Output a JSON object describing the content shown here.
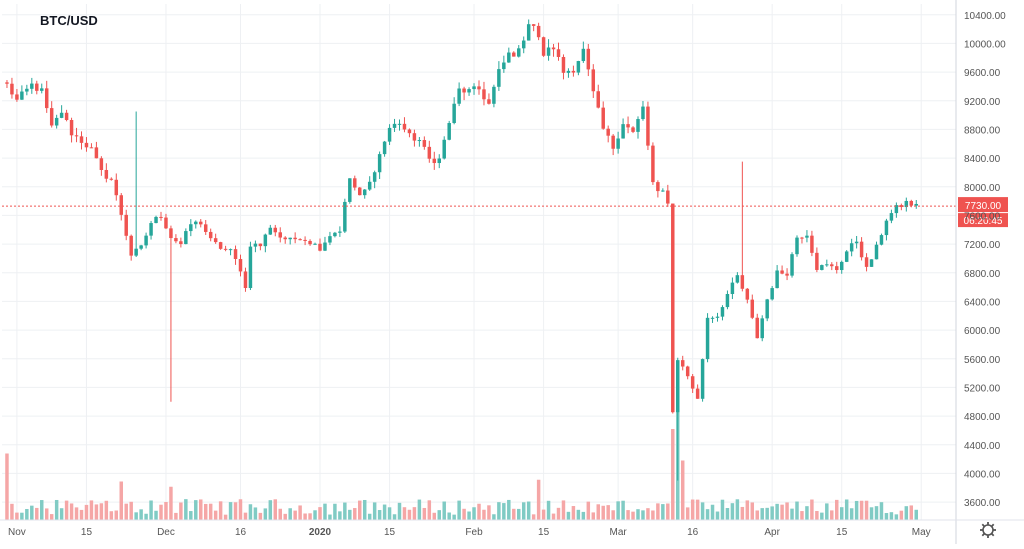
{
  "chart_data": {
    "type": "candlestick",
    "title": "BTC/USD",
    "y_ticks": [
      3600,
      4000,
      4400,
      4800,
      5200,
      5600,
      6000,
      6400,
      6800,
      7200,
      7600,
      8000,
      8400,
      8800,
      9200,
      9600,
      10000,
      10400
    ],
    "y_tick_labels": [
      "3600.00",
      "4000.00",
      "4400.00",
      "4800.00",
      "5200.00",
      "5600.00",
      "6000.00",
      "6400.00",
      "6800.00",
      "7200.00",
      "7600.00",
      "8000.00",
      "8400.00",
      "8800.00",
      "9200.00",
      "9600.00",
      "10000.00",
      "10400.00"
    ],
    "ylim": [
      3350,
      10550
    ],
    "x_ticks": [
      {
        "date": "2019-11-01",
        "label": "Nov"
      },
      {
        "date": "2019-11-15",
        "label": "15"
      },
      {
        "date": "2019-12-01",
        "label": "Dec"
      },
      {
        "date": "2019-12-16",
        "label": "16"
      },
      {
        "date": "2020-01-01",
        "label": "2020"
      },
      {
        "date": "2020-01-15",
        "label": "15"
      },
      {
        "date": "2020-02-01",
        "label": "Feb"
      },
      {
        "date": "2020-02-15",
        "label": "15"
      },
      {
        "date": "2020-03-01",
        "label": "Mar"
      },
      {
        "date": "2020-03-16",
        "label": "16"
      },
      {
        "date": "2020-04-01",
        "label": "Apr"
      },
      {
        "date": "2020-04-15",
        "label": "15"
      },
      {
        "date": "2020-05-01",
        "label": "May"
      }
    ],
    "x_range": [
      "2019-10-29",
      "2020-05-08"
    ],
    "first_date": "2019-10-30",
    "last_price": 7730.0,
    "last_price_label": "7730.00",
    "countdown_label": "06:20:45",
    "colors": {
      "up": "#26a69a",
      "down": "#ef5350",
      "up_volume": "#80cbc4",
      "down_volume": "#f5a6a6",
      "grid": "#eef0f3",
      "axis_text": "#555555"
    },
    "grid": true,
    "close_anchors": [
      [
        "2019-10-30",
        9420
      ],
      [
        "2019-11-01",
        9200
      ],
      [
        "2019-11-04",
        9420
      ],
      [
        "2019-11-06",
        9330
      ],
      [
        "2019-11-08",
        8820
      ],
      [
        "2019-11-10",
        9050
      ],
      [
        "2019-11-12",
        8750
      ],
      [
        "2019-11-14",
        8640
      ],
      [
        "2019-11-16",
        8520
      ],
      [
        "2019-11-18",
        8200
      ],
      [
        "2019-11-20",
        8100
      ],
      [
        "2019-11-22",
        7620
      ],
      [
        "2019-11-24",
        7050
      ],
      [
        "2019-11-26",
        7150
      ],
      [
        "2019-11-28",
        7500
      ],
      [
        "2019-11-30",
        7600
      ],
      [
        "2019-12-02",
        7300
      ],
      [
        "2019-12-04",
        7200
      ],
      [
        "2019-12-06",
        7480
      ],
      [
        "2019-12-08",
        7500
      ],
      [
        "2019-12-10",
        7250
      ],
      [
        "2019-12-12",
        7150
      ],
      [
        "2019-12-14",
        7100
      ],
      [
        "2019-12-16",
        6850
      ],
      [
        "2019-12-17",
        6580
      ],
      [
        "2019-12-18",
        7200
      ],
      [
        "2019-12-20",
        7180
      ],
      [
        "2019-12-22",
        7450
      ],
      [
        "2019-12-24",
        7300
      ],
      [
        "2019-12-26",
        7250
      ],
      [
        "2019-12-28",
        7300
      ],
      [
        "2019-12-30",
        7230
      ],
      [
        "2020-01-01",
        7150
      ],
      [
        "2020-01-03",
        7330
      ],
      [
        "2020-01-05",
        7400
      ],
      [
        "2020-01-07",
        8120
      ],
      [
        "2020-01-09",
        7850
      ],
      [
        "2020-01-11",
        8050
      ],
      [
        "2020-01-13",
        8450
      ],
      [
        "2020-01-15",
        8820
      ],
      [
        "2020-01-17",
        8900
      ],
      [
        "2020-01-19",
        8700
      ],
      [
        "2020-01-21",
        8650
      ],
      [
        "2020-01-23",
        8380
      ],
      [
        "2020-01-25",
        8380
      ],
      [
        "2020-01-27",
        8900
      ],
      [
        "2020-01-29",
        9350
      ],
      [
        "2020-01-31",
        9330
      ],
      [
        "2020-02-02",
        9360
      ],
      [
        "2020-02-04",
        9150
      ],
      [
        "2020-02-06",
        9600
      ],
      [
        "2020-02-08",
        9850
      ],
      [
        "2020-02-10",
        9880
      ],
      [
        "2020-02-12",
        10300
      ],
      [
        "2020-02-13",
        10250
      ],
      [
        "2020-02-15",
        9850
      ],
      [
        "2020-02-17",
        9950
      ],
      [
        "2020-02-19",
        9600
      ],
      [
        "2020-02-21",
        9650
      ],
      [
        "2020-02-23",
        9900
      ],
      [
        "2020-02-25",
        9300
      ],
      [
        "2020-02-27",
        8800
      ],
      [
        "2020-02-29",
        8550
      ],
      [
        "2020-03-02",
        8900
      ],
      [
        "2020-03-04",
        8750
      ],
      [
        "2020-03-06",
        9100
      ],
      [
        "2020-03-08",
        8050
      ],
      [
        "2020-03-09",
        7900
      ],
      [
        "2020-03-10",
        7930
      ],
      [
        "2020-03-11",
        7800
      ],
      [
        "2020-03-12",
        4850
      ],
      [
        "2020-03-13",
        5600
      ],
      [
        "2020-03-15",
        5360
      ],
      [
        "2020-03-17",
        5030
      ],
      [
        "2020-03-19",
        6180
      ],
      [
        "2020-03-21",
        6200
      ],
      [
        "2020-03-23",
        6500
      ],
      [
        "2020-03-25",
        6750
      ],
      [
        "2020-03-27",
        6400
      ],
      [
        "2020-03-29",
        5900
      ],
      [
        "2020-03-31",
        6430
      ],
      [
        "2020-04-02",
        6800
      ],
      [
        "2020-04-04",
        6800
      ],
      [
        "2020-04-06",
        7300
      ],
      [
        "2020-04-08",
        7350
      ],
      [
        "2020-04-10",
        6870
      ],
      [
        "2020-04-12",
        6900
      ],
      [
        "2020-04-14",
        6850
      ],
      [
        "2020-04-16",
        7100
      ],
      [
        "2020-04-18",
        7250
      ],
      [
        "2020-04-20",
        6850
      ],
      [
        "2020-04-22",
        7150
      ],
      [
        "2020-04-24",
        7550
      ],
      [
        "2020-04-26",
        7700
      ],
      [
        "2020-04-28",
        7780
      ],
      [
        "2020-04-30",
        7730
      ]
    ],
    "spikes": [
      {
        "date": "2019-11-25",
        "high": 9050
      },
      {
        "date": "2019-12-02",
        "low": 5000
      },
      {
        "date": "2020-03-13",
        "low": 3900
      },
      {
        "date": "2020-03-26",
        "high": 8350
      }
    ],
    "volume_ylim": [
      0,
      4000
    ],
    "volume_spikes": [
      {
        "date": "2019-10-30",
        "value": 1900
      },
      {
        "date": "2019-11-22",
        "value": 1100
      },
      {
        "date": "2019-12-02",
        "value": 950
      },
      {
        "date": "2020-02-14",
        "value": 1150
      },
      {
        "date": "2020-03-12",
        "value": 2600
      },
      {
        "date": "2020-03-13",
        "value": 3200
      },
      {
        "date": "2020-03-14",
        "value": 1700
      }
    ]
  }
}
